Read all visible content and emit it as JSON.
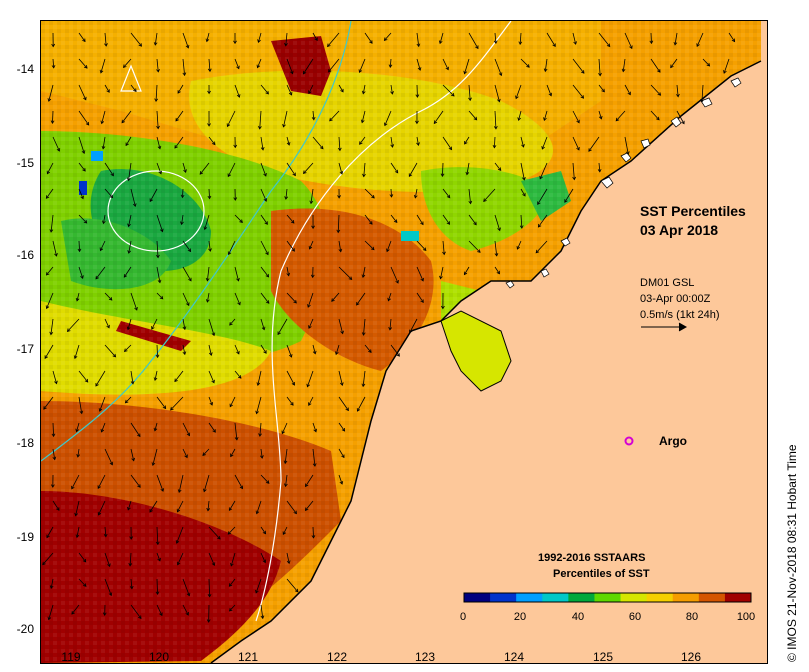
{
  "map": {
    "title_line1": "SST Percentiles",
    "title_line2": "03 Apr 2018",
    "data_source": "DM01 GSL",
    "timestamp": "03-Apr 00:00Z",
    "vector_scale": "0.5m/s (1kt 24h)",
    "argo_label": "Argo",
    "credit": "© IMOS 21-Nov-2018 08:31 Hobart Time",
    "y_axis_labels": [
      "-14",
      "-15",
      "-16",
      "-17",
      "-18",
      "-19",
      "-20"
    ],
    "x_axis_labels": [
      "119",
      "120",
      "121",
      "122",
      "123",
      "124",
      "125",
      "126"
    ],
    "legend": {
      "title_line1": "1992-2016 SSTAARS",
      "title_line2": "Percentiles of SST",
      "tick_labels": [
        "0",
        "20",
        "40",
        "60",
        "80",
        "100"
      ],
      "colors": [
        "#00007f",
        "#0033cc",
        "#009fff",
        "#00c8c8",
        "#00a83c",
        "#5fd900",
        "#d6e600",
        "#f5d000",
        "#f59d00",
        "#d45500",
        "#a00000"
      ]
    },
    "land_color": "#fdc89a",
    "argo_color": "#d400d4"
  }
}
